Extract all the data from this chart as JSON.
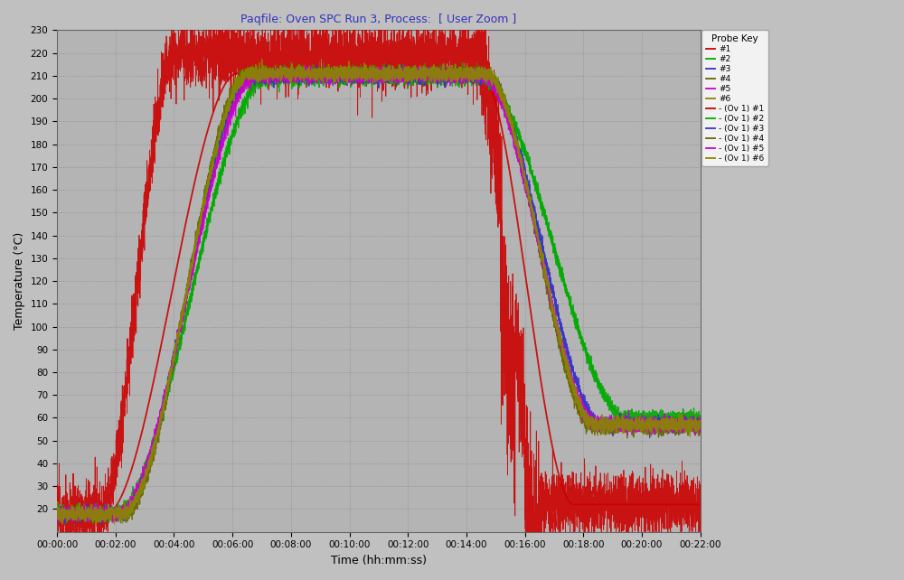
{
  "title": "Paqfile: Oven SPC Run 3, Process:  [ User Zoom ]",
  "xlabel": "Time (hh:mm:ss)",
  "ylabel": "Temperature (°C)",
  "fig_bg": "#c0c0c0",
  "plot_bg": "#b4b4b4",
  "xlim_seconds": [
    0,
    1320
  ],
  "ylim": [
    10,
    230
  ],
  "yticks": [
    20,
    30,
    40,
    50,
    60,
    70,
    80,
    90,
    100,
    110,
    120,
    130,
    140,
    150,
    160,
    170,
    180,
    190,
    200,
    210,
    220,
    230
  ],
  "xticks_s": [
    0,
    120,
    240,
    360,
    480,
    600,
    720,
    840,
    960,
    1080,
    1200,
    1320
  ],
  "xtick_labels": [
    "00:00:00",
    "00:02:00",
    "00:04:00",
    "00:06:00",
    "00:08:00",
    "00:10:00",
    "00:12:00",
    "00:14:00",
    "00:16:00",
    "00:18:00",
    "00:20:00",
    "00:22:00"
  ],
  "legend_labels": [
    "#1",
    "#2",
    "#3",
    "#4",
    "#5",
    "#6",
    "- (Ov 1) #1",
    "- (Ov 1) #2",
    "- (Ov 1) #3",
    "- (Ov 1) #4",
    "- (Ov 1) #5",
    "- (Ov 1) #6"
  ],
  "probe_colors": [
    "#cc0000",
    "#00aa00",
    "#3333cc",
    "#666600",
    "#cc00cc",
    "#888800"
  ],
  "ov_colors": [
    "#cc0000",
    "#00aa00",
    "#3333cc",
    "#666600",
    "#cc00cc",
    "#888800"
  ],
  "title_color": "#3333bb",
  "title_fontsize": 9,
  "tick_fontsize": 7.5,
  "label_fontsize": 9
}
